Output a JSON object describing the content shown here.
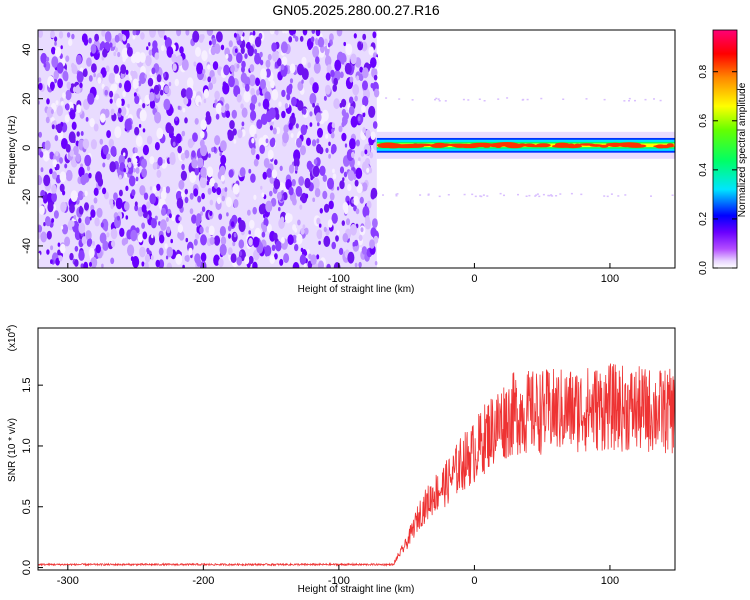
{
  "figure": {
    "title": "GN05.2025.280.00.27.R16"
  },
  "chart_data": [
    {
      "type": "heatmap",
      "title": "GN05.2025.280.00.27.R16",
      "xlabel": "Height of straight line (km)",
      "ylabel": "Frequency (Hz)",
      "xlim": [
        -322,
        148
      ],
      "ylim": [
        -49,
        48
      ],
      "x_ticks": [
        -300,
        -200,
        -100,
        0,
        100
      ],
      "x_tick_labels": [
        "-300",
        "-200",
        "-100",
        "0",
        "100"
      ],
      "y_ticks": [
        -40,
        -20,
        0,
        20,
        40
      ],
      "y_tick_labels": [
        "-40",
        "-20",
        "0",
        "20",
        "40"
      ],
      "noise_region_x": [
        -322,
        -72
      ],
      "signal_band": {
        "x_start": -72,
        "x_end": 148,
        "center_freq": 1,
        "half_width": 2.5
      },
      "colorbar": {
        "label": "Normalized spectral amplitude",
        "range": [
          0,
          0.97
        ],
        "ticks": [
          0.0,
          0.2,
          0.4,
          0.6,
          0.8
        ],
        "tick_labels": [
          "0.0",
          "0.2",
          "0.4",
          "0.6",
          "0.8"
        ],
        "colormap": [
          "#ffffff",
          "#b34dff",
          "#6a00ff",
          "#0000ff",
          "#00e5ff",
          "#00ff66",
          "#66ff00",
          "#ffff00",
          "#ff8800",
          "#ff0000",
          "#ff0077"
        ]
      },
      "grid": false
    },
    {
      "type": "line",
      "xlabel": "Height of straight line (km)",
      "ylabel": "SNR (10 * v/v)",
      "y_multiplier_label": "(x10",
      "y_multiplier_exp": "4",
      "y_multiplier_close": ")",
      "xlim": [
        -322,
        148
      ],
      "ylim": [
        -0.02,
        1.97
      ],
      "x_ticks": [
        -300,
        -200,
        -100,
        0,
        100
      ],
      "x_tick_labels": [
        "-300",
        "-200",
        "-100",
        "0",
        "100"
      ],
      "y_ticks": [
        0.0,
        0.5,
        1.0,
        1.5
      ],
      "y_tick_labels": [
        "0.0",
        "0.5",
        "1.0",
        "1.5"
      ],
      "color": "#ee3333",
      "envelope": {
        "x": [
          -322,
          -60,
          -50,
          -40,
          -30,
          -20,
          -10,
          0,
          10,
          20,
          30,
          50,
          80,
          100,
          120,
          148
        ],
        "y": [
          0.03,
          0.03,
          0.2,
          0.45,
          0.6,
          0.7,
          0.85,
          0.95,
          1.1,
          1.2,
          1.27,
          1.28,
          1.3,
          1.32,
          1.3,
          1.28
        ]
      },
      "grid": false
    }
  ]
}
